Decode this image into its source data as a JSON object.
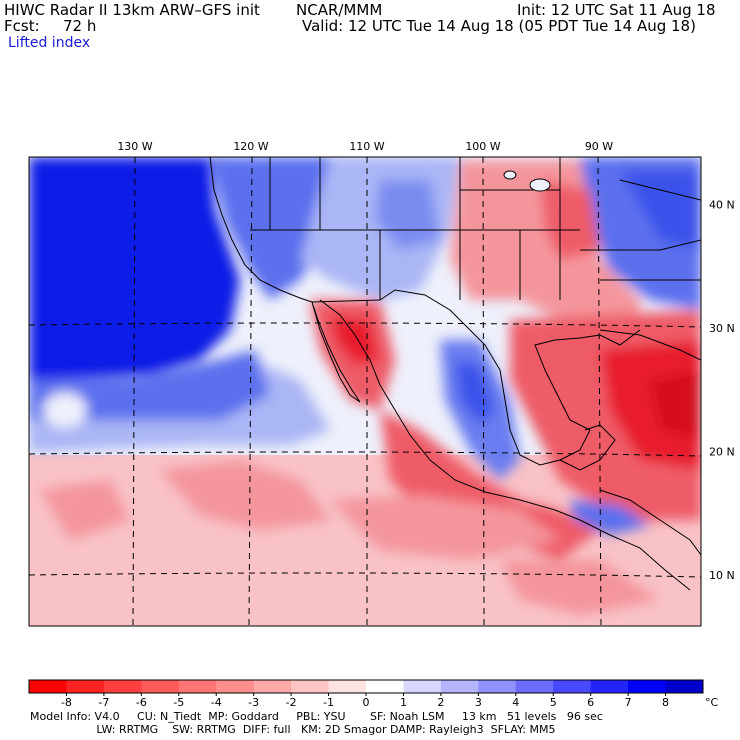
{
  "header": {
    "title_left": "HIWC Radar II 13km ARW–GFS init",
    "org": "NCAR/MMM",
    "init": "Init: 12 UTC Sat 11 Aug 18",
    "fcst_label": "Fcst:",
    "fcst_value": "72 h",
    "valid": "Valid: 12 UTC Tue 14 Aug 18 (05 PDT Tue 14 Aug 18)",
    "field": "Lifted index"
  },
  "map": {
    "lon_labels": [
      {
        "text": "130 W",
        "lon": -130
      },
      {
        "text": "120 W",
        "lon": -120
      },
      {
        "text": "110 W",
        "lon": -110
      },
      {
        "text": "100 W",
        "lon": -100
      },
      {
        "text": "90 W",
        "lon": -90
      }
    ],
    "lat_labels": [
      {
        "text": "40 N",
        "lat": 40
      },
      {
        "text": "30 N",
        "lat": 30
      },
      {
        "text": "20 N",
        "lat": 20
      },
      {
        "text": "10 N",
        "lat": 10
      }
    ],
    "colors": {
      "deep_blue": "#0b1fe6",
      "mid_blue": "#5b70ee",
      "light_blue": "#aab6f5",
      "pale": "#eef0fb",
      "pale_red": "#f8c2c6",
      "light_red": "#f4959c",
      "mid_red": "#ee5c68",
      "deep_red": "#e81f2e"
    }
  },
  "colorbar": {
    "labels": [
      "-8",
      "-7",
      "-6",
      "-5",
      "-4",
      "-3",
      "-2",
      "-1",
      "0",
      "1",
      "2",
      "3",
      "4",
      "5",
      "6",
      "7",
      "8"
    ],
    "unit": "°C",
    "colors": [
      "#ff0000",
      "#ff2222",
      "#ff4040",
      "#ff5a5a",
      "#ff7474",
      "#ff8e8e",
      "#ffa8a8",
      "#ffc4c4",
      "#ffe2e2",
      "#ffffff",
      "#d8d8ff",
      "#b4b4ff",
      "#9090ff",
      "#6c6cff",
      "#4848ff",
      "#2424ff",
      "#0000ff",
      "#0000cc"
    ]
  },
  "footer": {
    "line1": "Model Info: V4.0     CU: N_Tiedt  MP: Goddard     PBL: YSU       SF: Noah LSM     13 km   51 levels   96 sec",
    "line2": "                   LW: RRTMG    SW: RRTMG  DIFF: full   KM: 2D Smagor DAMP: Rayleigh3  SFLAY: MM5"
  }
}
